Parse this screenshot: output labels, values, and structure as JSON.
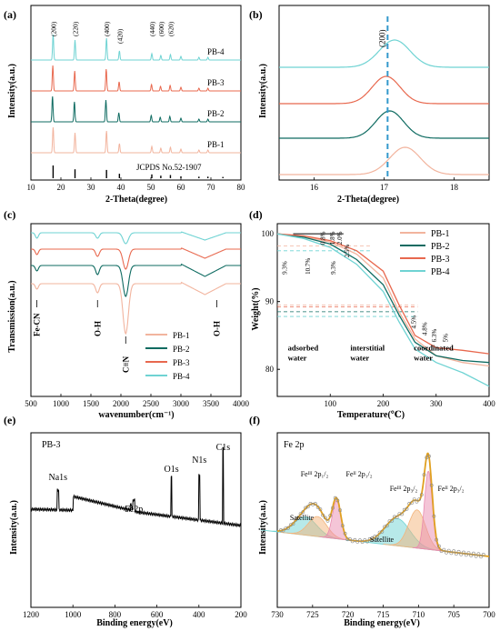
{
  "colors": {
    "PB-1": "#f2b49e",
    "PB-2": "#0e6b61",
    "PB-3": "#e8684e",
    "PB-4": "#6fd3d3",
    "grid_line": "#3399cc",
    "fit": "#e0a020",
    "fe2": "#e98bb0",
    "fe3": "#f3b37a",
    "sat": "#6fd3d3"
  },
  "panels": {
    "a": {
      "label": "(a)",
      "ylabel": "Intensity(a.u.)",
      "xlabel": "2-Theta(degree)"
    },
    "b": {
      "label": "(b)",
      "ylabel": "Intensity(a.u.)",
      "xlabel": "2-Theta(degree)"
    },
    "c": {
      "label": "(c)",
      "ylabel": "Transmission(a.u.)",
      "xlabel": "wavenumber(cm⁻¹)"
    },
    "d": {
      "label": "(d)",
      "ylabel": "Weight(%)",
      "xlabel": "Temperature(℃)"
    },
    "e": {
      "label": "(e)",
      "ylabel": "Intensity(a.u.)",
      "xlabel": "Binding energy(eV)"
    },
    "f": {
      "label": "(f)",
      "ylabel": "Intensity(a.u.)",
      "xlabel": "Binding energy(eV)"
    }
  },
  "chart_data": [
    {
      "id": "a",
      "type": "line",
      "xlabel": "2-Theta(degree)",
      "ylabel": "Intensity(a.u.)",
      "xlim": [
        10,
        80
      ],
      "xticks": [
        10,
        20,
        30,
        40,
        50,
        60,
        70,
        80
      ],
      "series": [
        {
          "name": "PB-4",
          "peaks_2theta": [
            17.4,
            24.7,
            35.2,
            39.5,
            50.3,
            53.3,
            56.5,
            60,
            66,
            69
          ]
        },
        {
          "name": "PB-3",
          "peaks_2theta": [
            17.3,
            24.6,
            35.1,
            39.4,
            50.2,
            53.2,
            56.4,
            60,
            66,
            69
          ]
        },
        {
          "name": "PB-2",
          "peaks_2theta": [
            17.2,
            24.5,
            35.0,
            39.3,
            50.1,
            53.1,
            56.3,
            60,
            66,
            69
          ]
        },
        {
          "name": "PB-1",
          "peaks_2theta": [
            17.4,
            24.7,
            35.2,
            39.5,
            50.3,
            53.3,
            56.5,
            60,
            66,
            69
          ]
        }
      ],
      "peak_labels": [
        {
          "text": "(200)",
          "x": 17.4
        },
        {
          "text": "(220)",
          "x": 24.7
        },
        {
          "text": "(400)",
          "x": 35.2
        },
        {
          "text": "(420)",
          "x": 39.5
        },
        {
          "text": "(440)",
          "x": 50.3
        },
        {
          "text": "(600)",
          "x": 53.3
        },
        {
          "text": "(620)",
          "x": 56.5
        }
      ],
      "reference": {
        "name": "JCPDS No.52-1907",
        "sticks": [
          {
            "x": 17.4,
            "h": 1.0
          },
          {
            "x": 24.7,
            "h": 0.7
          },
          {
            "x": 35.2,
            "h": 0.65
          },
          {
            "x": 39.5,
            "h": 0.35
          },
          {
            "x": 50.3,
            "h": 0.3
          },
          {
            "x": 53.3,
            "h": 0.2
          },
          {
            "x": 56.5,
            "h": 0.25
          },
          {
            "x": 60.0,
            "h": 0.15
          },
          {
            "x": 66.0,
            "h": 0.12
          },
          {
            "x": 69.0,
            "h": 0.12
          },
          {
            "x": 74.0,
            "h": 0.1
          }
        ]
      }
    },
    {
      "id": "b",
      "type": "line",
      "xlabel": "2-Theta(degree)",
      "ylabel": "Intensity(a.u.)",
      "xlim": [
        15.5,
        18.5
      ],
      "xticks": [
        16,
        17,
        18
      ],
      "marker_label": "(200)",
      "marker_x": 17.05,
      "series": [
        {
          "name": "PB-4",
          "peak": 17.15,
          "width": 0.22
        },
        {
          "name": "PB-3",
          "peak": 17.03,
          "width": 0.2
        },
        {
          "name": "PB-2",
          "peak": 17.08,
          "width": 0.2
        },
        {
          "name": "PB-1",
          "peak": 17.3,
          "width": 0.22
        }
      ]
    },
    {
      "id": "c",
      "type": "line",
      "xlabel": "wavenumber(cm⁻¹)",
      "ylabel": "Transmission(a.u.)",
      "xlim": [
        500,
        4000
      ],
      "xticks": [
        500,
        1000,
        1500,
        2000,
        2500,
        3000,
        3500,
        4000
      ],
      "bands": [
        {
          "label": "Fe-CN",
          "x": 600
        },
        {
          "label": "O-H",
          "x": 1610
        },
        {
          "label": "C≡N",
          "x": 2080
        },
        {
          "label": "O-H",
          "x": 3600
        }
      ],
      "series": [
        {
          "name": "PB-1"
        },
        {
          "name": "PB-2"
        },
        {
          "name": "PB-3"
        },
        {
          "name": "PB-4"
        }
      ]
    },
    {
      "id": "d",
      "type": "line",
      "xlabel": "Temperature(℃)",
      "ylabel": "Weight(%)",
      "xlim": [
        0,
        400
      ],
      "ylim": [
        76,
        101.5
      ],
      "xticks": [
        100,
        200,
        300,
        400
      ],
      "yticks": [
        80,
        90,
        100
      ],
      "region_labels": [
        {
          "lines": [
            "adsorbed",
            "water"
          ],
          "x": 20
        },
        {
          "lines": [
            "interstitial",
            "water"
          ],
          "x": 138
        },
        {
          "lines": [
            "coordinated",
            "water"
          ],
          "x": 258
        }
      ],
      "series": [
        {
          "name": "PB-1",
          "x": [
            0,
            50,
            100,
            150,
            200,
            230,
            260,
            300,
            350,
            400
          ],
          "y": [
            100,
            99.6,
            98.8,
            97,
            93.5,
            88.5,
            84.5,
            82,
            81,
            80.5
          ]
        },
        {
          "name": "PB-2",
          "x": [
            0,
            50,
            100,
            150,
            200,
            230,
            260,
            300,
            350,
            400
          ],
          "y": [
            100,
            99.5,
            98.5,
            96.2,
            92.5,
            88,
            84,
            82,
            81.3,
            81
          ]
        },
        {
          "name": "PB-3",
          "x": [
            0,
            50,
            100,
            150,
            200,
            230,
            260,
            300,
            350,
            400
          ],
          "y": [
            100,
            99.7,
            99.0,
            97.5,
            94.5,
            89.5,
            85,
            83.2,
            82.8,
            82.3
          ]
        },
        {
          "name": "PB-4",
          "x": [
            0,
            50,
            100,
            150,
            200,
            230,
            260,
            300,
            350,
            400
          ],
          "y": [
            100,
            99.3,
            98,
            95.5,
            91.5,
            87,
            83,
            81,
            79.5,
            77.5
          ]
        }
      ],
      "annotations": [
        "0.8%",
        "1.8%",
        "2.0%",
        "2.5%",
        "9.3%",
        "10.7%",
        "9.3%",
        "4.5%",
        "4.8%",
        "6.3%",
        "5%"
      ]
    },
    {
      "id": "e",
      "type": "line",
      "xlabel": "Binding energy(eV)",
      "ylabel": "Intensity(a.u.)",
      "title": "PB-3",
      "xlim": [
        1200,
        200
      ],
      "xticks": [
        1200,
        1000,
        800,
        600,
        400,
        200
      ],
      "peaks": [
        {
          "label": "Na1s",
          "x": 1071
        },
        {
          "label": "Fe2p",
          "x": 710
        },
        {
          "label": "O1s",
          "x": 531
        },
        {
          "label": "N1s",
          "x": 398
        },
        {
          "label": "C1s",
          "x": 285
        }
      ]
    },
    {
      "id": "f",
      "type": "line",
      "xlabel": "Binding energy(eV)",
      "ylabel": "Intensity(a.u.)",
      "title": "Fe 2p",
      "xlim": [
        730,
        700
      ],
      "xticks": [
        730,
        725,
        720,
        715,
        710,
        705,
        700
      ],
      "components": [
        {
          "label": "Feᴵᴵᴵ 2p₁/₂",
          "center": 724.2,
          "type": "fe3"
        },
        {
          "label": "Feᴵᴵ 2p₁/₂",
          "center": 721.5,
          "type": "fe2"
        },
        {
          "label": "Feᴵᴵᴵ 2p₃/₂",
          "center": 710.0,
          "type": "fe3"
        },
        {
          "label": "Feᴵᴵ 2p₃/₂",
          "center": 708.5,
          "type": "fe2"
        },
        {
          "label": "Satellite",
          "center": 725.5,
          "type": "sat"
        },
        {
          "label": "Satellite",
          "center": 713.0,
          "type": "sat"
        }
      ]
    }
  ]
}
